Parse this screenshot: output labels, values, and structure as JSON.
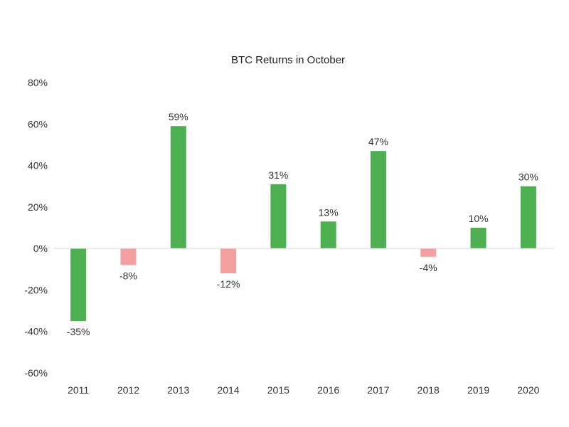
{
  "chart_data": {
    "type": "bar",
    "title": "BTC Returns in October",
    "xlabel": "",
    "ylabel": "",
    "categories": [
      "2011",
      "2012",
      "2013",
      "2014",
      "2015",
      "2016",
      "2017",
      "2018",
      "2019",
      "2020"
    ],
    "values": [
      -35,
      -8,
      59,
      -12,
      31,
      13,
      47,
      -4,
      10,
      30
    ],
    "data_labels": [
      "-35%",
      "-8%",
      "59%",
      "-12%",
      "31%",
      "13%",
      "47%",
      "-4%",
      "10%",
      "30%"
    ],
    "bar_colors": [
      "#4caf50",
      "#f4a0a0",
      "#4caf50",
      "#f4a0a0",
      "#4caf50",
      "#4caf50",
      "#4caf50",
      "#f4a0a0",
      "#4caf50",
      "#4caf50"
    ],
    "ylim": [
      -60,
      80
    ],
    "yticks": [
      80,
      60,
      40,
      20,
      0,
      -20,
      -40,
      -60
    ],
    "ytick_labels": [
      "80%",
      "60%",
      "40%",
      "20%",
      "0%",
      "-20%",
      "-40%",
      "-60%"
    ],
    "grid": false,
    "legend": "none",
    "colors": {
      "positive": "#4caf50",
      "negative_small": "#f4a0a0",
      "axis": "#d9d9d9"
    }
  }
}
